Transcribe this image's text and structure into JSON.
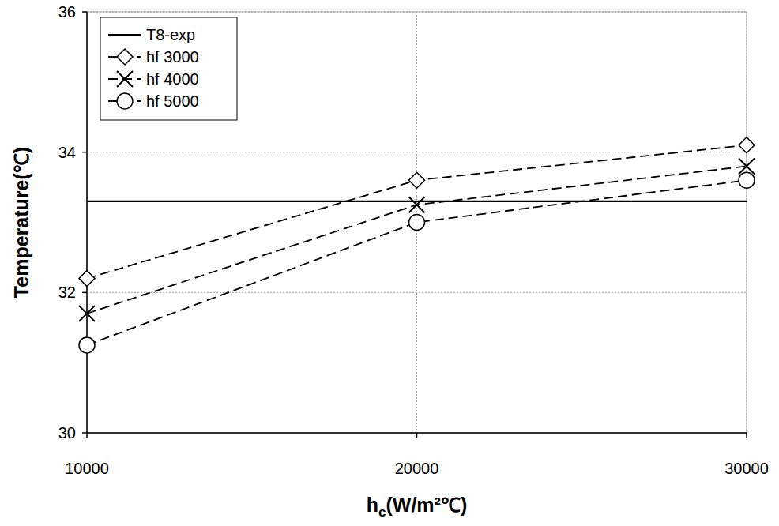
{
  "chart_data": {
    "type": "line",
    "x_label": "hc(W/m²℃)",
    "y_label": "Temperature(℃)",
    "x": [
      10000,
      20000,
      30000
    ],
    "series": [
      {
        "name": "T8-exp",
        "color": "#000000",
        "marker": "none",
        "line_style": "solid",
        "values": [
          33.3,
          33.3,
          33.3
        ]
      },
      {
        "name": "hf 3000",
        "color": "#000000",
        "marker": "diamond",
        "line_style": "dashed",
        "values": [
          32.2,
          33.6,
          34.1
        ]
      },
      {
        "name": "hf 4000",
        "color": "#000000",
        "marker": "x",
        "line_style": "dashed",
        "values": [
          31.7,
          33.25,
          33.8
        ]
      },
      {
        "name": "hf 5000",
        "color": "#000000",
        "marker": "circle",
        "line_style": "dashed",
        "values": [
          31.25,
          33.0,
          33.6
        ]
      }
    ],
    "xlim": [
      10000,
      30000
    ],
    "xticks": [
      10000,
      20000,
      30000
    ],
    "ylim": [
      30,
      36
    ],
    "yticks": [
      30,
      32,
      34,
      36
    ],
    "grid": true,
    "legend": "top-left"
  }
}
